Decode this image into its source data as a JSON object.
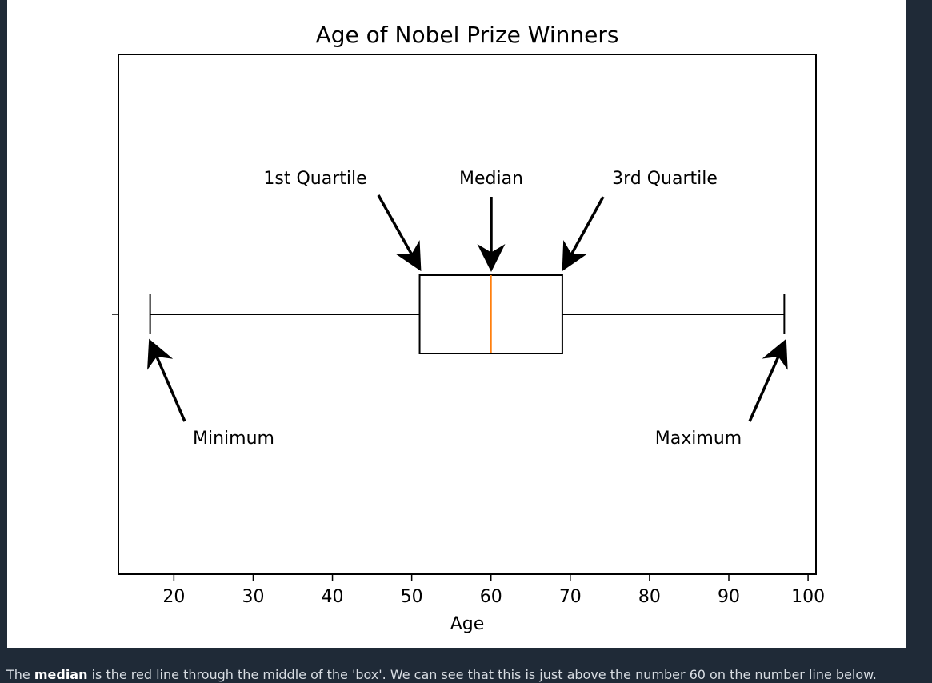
{
  "chart_data": {
    "type": "boxplot",
    "title": "Age of Nobel Prize Winners",
    "xlabel": "Age",
    "ylabel": "",
    "xlim": [
      13,
      101
    ],
    "xticks": [
      20,
      30,
      40,
      50,
      60,
      70,
      80,
      90,
      100
    ],
    "box": {
      "minimum": 17,
      "q1": 51,
      "median": 60,
      "q3": 69,
      "maximum": 97
    },
    "colors": {
      "median": "#ff7f0e",
      "box": "#000000"
    },
    "annotations": [
      {
        "label": "Minimum",
        "points_to": "minimum"
      },
      {
        "label": "1st Quartile",
        "points_to": "q1"
      },
      {
        "label": "Median",
        "points_to": "median"
      },
      {
        "label": "3rd Quartile",
        "points_to": "q3"
      },
      {
        "label": "Maximum",
        "points_to": "maximum"
      }
    ],
    "grid": false
  },
  "caption": {
    "prefix": "The ",
    "bold": "median",
    "suffix": " is the red line through the middle of the 'box'. We can see that this is just above the number 60 on the number line below."
  }
}
